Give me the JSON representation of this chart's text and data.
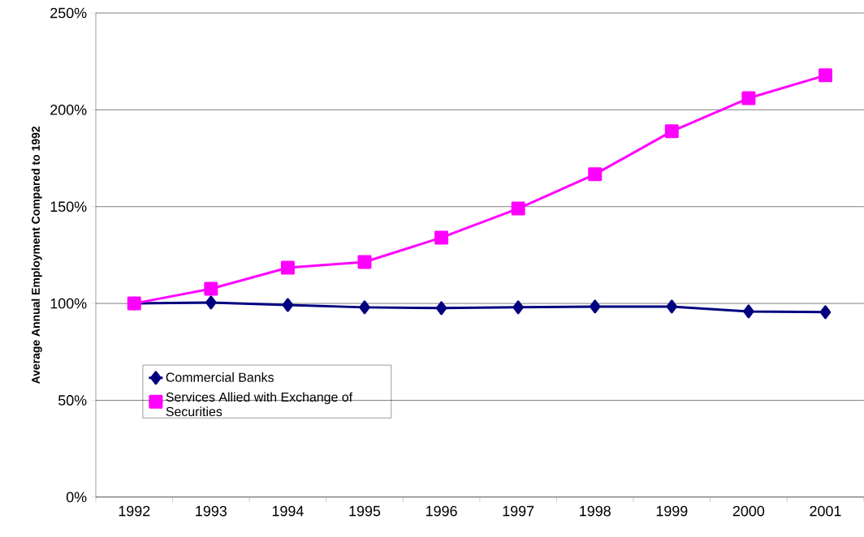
{
  "chart_data": {
    "type": "line",
    "ylabel": "Average Annual Employment Compared to 1992",
    "categories": [
      "1992",
      "1993",
      "1994",
      "1995",
      "1996",
      "1997",
      "1998",
      "1999",
      "2000",
      "2001"
    ],
    "series": [
      {
        "name": "Commercial Banks",
        "color": "#000080",
        "marker": "diamond",
        "values": [
          100,
          100.5,
          99.2,
          98,
          97.6,
          98,
          98.4,
          98.4,
          95.9,
          95.5
        ]
      },
      {
        "name": "Services Allied with Exchange of Securities",
        "color": "#ff00ff",
        "marker": "square",
        "values": [
          100,
          107.6,
          118.5,
          121.4,
          134,
          149,
          166.7,
          188.9,
          206,
          217.8
        ]
      }
    ],
    "ylim": [
      0,
      250
    ],
    "yticks": [
      {
        "value": 0,
        "label": "0%"
      },
      {
        "value": 50,
        "label": "50%"
      },
      {
        "value": 100,
        "label": "100%"
      },
      {
        "value": 150,
        "label": "150%"
      },
      {
        "value": 200,
        "label": "200%"
      },
      {
        "value": 250,
        "label": "250%"
      }
    ],
    "grid": "y",
    "legend": "bottom left",
    "line_style": "solid"
  }
}
